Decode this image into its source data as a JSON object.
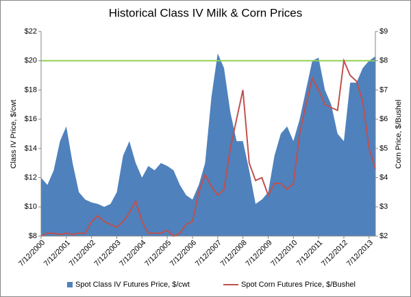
{
  "chart_data": {
    "type": "area-line",
    "title": "Historical Class IV Milk & Corn Prices",
    "y_label": "Class IV Price, $/cwt",
    "y2_label": "Corn Price, $/Bushel",
    "categories": [
      "7/12/2000",
      null,
      null,
      null,
      "7/12/2001",
      null,
      null,
      null,
      "7/12/2002",
      null,
      null,
      null,
      "7/12/2003",
      null,
      null,
      null,
      "7/12/2004",
      null,
      null,
      null,
      "7/12/2005",
      null,
      null,
      null,
      "7/12/2006",
      null,
      null,
      null,
      "7/12/2007",
      null,
      null,
      null,
      "7/12/2008",
      null,
      null,
      null,
      "7/12/2009",
      null,
      null,
      null,
      "7/12/2010",
      null,
      null,
      null,
      "7/12/2011",
      null,
      null,
      null,
      "7/12/2012",
      null,
      null,
      null,
      "7/12/2013",
      null
    ],
    "series": [
      {
        "name": "Spot Class IV Futures Price, $/cwt",
        "color": "#4f81bd",
        "kind": "area",
        "values": [
          12,
          11.5,
          12.5,
          14.5,
          15.5,
          13,
          11,
          10.5,
          10.3,
          10.2,
          10,
          10.2,
          11,
          13.5,
          14.5,
          13,
          12,
          12.8,
          12.5,
          13,
          12.8,
          12.5,
          11.5,
          10.8,
          10.5,
          11.5,
          13,
          17.5,
          20.5,
          19.5,
          16.5,
          14.5,
          14.5,
          12.5,
          10.2,
          10.5,
          11,
          13.5,
          15,
          15.5,
          14.5,
          16,
          18,
          20,
          20.2,
          18,
          17,
          15,
          14.5,
          18.5,
          18.5,
          19.5,
          20,
          20.3
        ]
      },
      {
        "name": "Spot Corn Futures Price, $/Bushel",
        "color": "#c0504d",
        "kind": "line",
        "axis": "y2",
        "values": [
          2.0,
          2.1,
          2.1,
          2.05,
          2.1,
          2.05,
          2.1,
          2.1,
          2.5,
          2.7,
          2.5,
          2.4,
          2.3,
          2.5,
          2.8,
          3.2,
          2.5,
          2.1,
          2.1,
          2.1,
          2.2,
          2.0,
          2.1,
          2.4,
          2.5,
          3.5,
          4.1,
          3.7,
          3.4,
          3.6,
          5.0,
          6.0,
          7.0,
          4.5,
          3.9,
          4.0,
          3.4,
          3.8,
          3.8,
          3.6,
          3.8,
          5.5,
          6.5,
          7.4,
          7.0,
          6.5,
          6.4,
          6.3,
          8.0,
          7.5,
          7.3,
          6.6,
          5.0,
          4.3
        ]
      }
    ],
    "hline": {
      "value": 20,
      "color": "#92d050"
    },
    "ylim": [
      8,
      22
    ],
    "yticks": [
      {
        "value": 8,
        "label": "$8"
      },
      {
        "value": 10,
        "label": "$10"
      },
      {
        "value": 12,
        "label": "$12"
      },
      {
        "value": 14,
        "label": "$14"
      },
      {
        "value": 16,
        "label": "$16"
      },
      {
        "value": 18,
        "label": "$18"
      },
      {
        "value": 20,
        "label": "$20"
      },
      {
        "value": 22,
        "label": "$22"
      }
    ],
    "y2lim": [
      2,
      9
    ],
    "y2ticks": [
      {
        "value": 2,
        "label": "$2"
      },
      {
        "value": 3,
        "label": "$3"
      },
      {
        "value": 4,
        "label": "$4"
      },
      {
        "value": 5,
        "label": "$5"
      },
      {
        "value": 6,
        "label": "$6"
      },
      {
        "value": 7,
        "label": "$7"
      },
      {
        "value": 8,
        "label": "$8"
      },
      {
        "value": 9,
        "label": "$9"
      }
    ],
    "legend": "bottom"
  }
}
